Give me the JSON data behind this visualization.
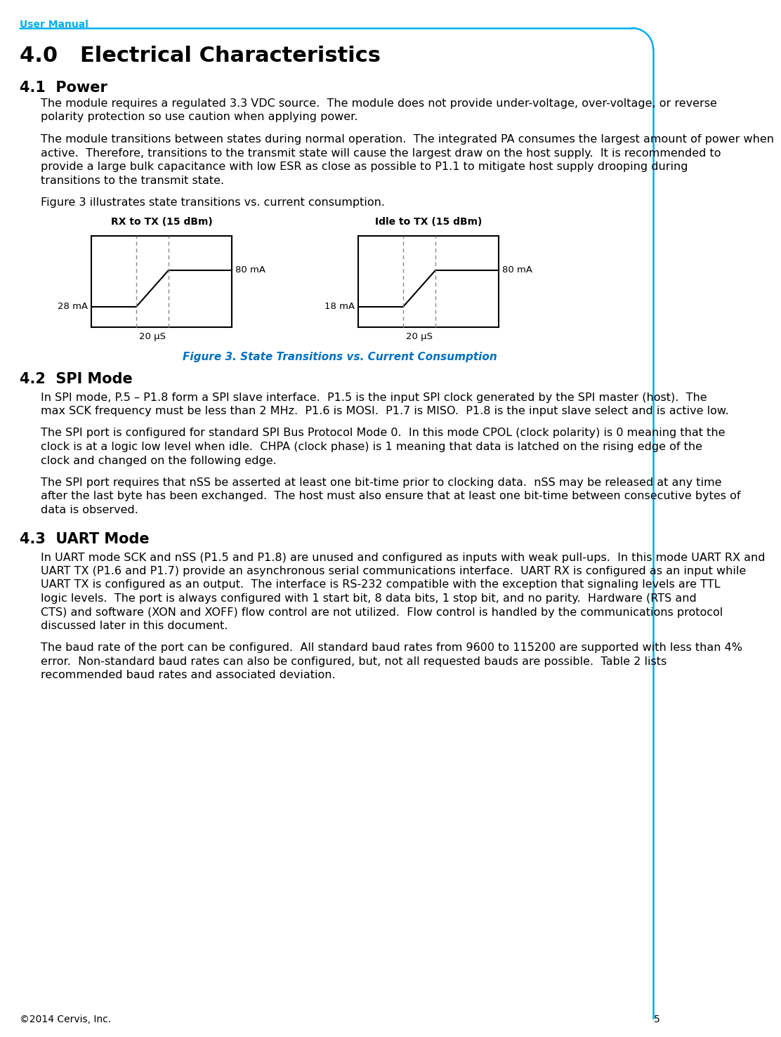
{
  "header_text": "User Manual",
  "header_color": "#00AEEF",
  "footer_text": "©2014 Cervis, Inc.",
  "footer_page": "5",
  "border_color": "#00AEEF",
  "title": "4.0   Electrical Characteristics",
  "section41": "4.1  Power",
  "para1": "The module requires a regulated 3.3 VDC source.  The module does not provide under-voltage, over-voltage, or reverse polarity protection so use caution when applying power.",
  "para2": "The module transitions between states during normal operation.  The integrated PA consumes the largest amount of power when active.  Therefore, transitions to the transmit state will cause the largest draw on the host supply.  It is recommended to provide a large bulk capacitance with low ESR as close as possible to P1.1 to mitigate host supply drooping during transitions to the transmit state.",
  "para3": "Figure 3 illustrates state transitions vs. current consumption.",
  "fig_caption": "Figure 3. State Transitions vs. Current Consumption",
  "fig_caption_color": "#0070C0",
  "chart1_title": "RX to TX (15 dBm)",
  "chart2_title": "Idle to TX (15 dBm)",
  "chart1_low_label": "28 mA",
  "chart1_high_label": "80 mA",
  "chart2_low_label": "18 mA",
  "chart2_high_label": "80 mA",
  "chart_xlabel": "20 μS",
  "section42": "4.2  SPI Mode",
  "para4": "In SPI mode, P.5 – P1.8 form a SPI slave interface.  P1.5 is the input SPI clock generated by the SPI master (host).  The max SCK frequency must be less than 2 MHz.  P1.6 is MOSI.  P1.7 is MISO.  P1.8 is the input slave select and is active low.",
  "para5": "The SPI port is configured for standard SPI Bus Protocol Mode 0.  In this mode CPOL (clock polarity) is 0 meaning that the clock is at a logic low level when idle.  CHPA (clock phase) is 1 meaning that data is latched on the rising edge of the clock and changed on the following edge.",
  "para6": "The SPI port requires that nSS be asserted at least one bit-time prior to clocking data.  nSS may be released at any time after the last byte has been exchanged.  The host must also ensure that at least one bit-time between consecutive bytes of data is observed.",
  "section43": "4.3  UART Mode",
  "para7": "In UART mode SCK and nSS (P1.5 and P1.8) are unused and configured as inputs with weak pull-ups.  In this mode UART RX and UART TX (P1.6 and P1.7) provide an asynchronous serial communications interface.  UART RX is configured as an input while UART TX is configured as an output.  The interface is RS-232 compatible with the exception that signaling levels are TTL logic levels.  The port is always configured with 1 start bit, 8 data bits, 1 stop bit, and no parity.  Hardware (RTS and CTS) and software (XON and XOFF) flow control are not utilized.  Flow control is handled by the communications protocol discussed later in this document.",
  "para8": "The baud rate of the port can be configured.  All standard baud rates from 9600 to 115200 are supported with less than 4% error.  Non-standard baud rates can also be configured, but, not all requested bauds are possible.  Table 2 lists recommended baud rates and associated deviation.",
  "text_color": "#000000",
  "bg_color": "#ffffff",
  "line_color": "#000000",
  "dashed_color": "#888888"
}
